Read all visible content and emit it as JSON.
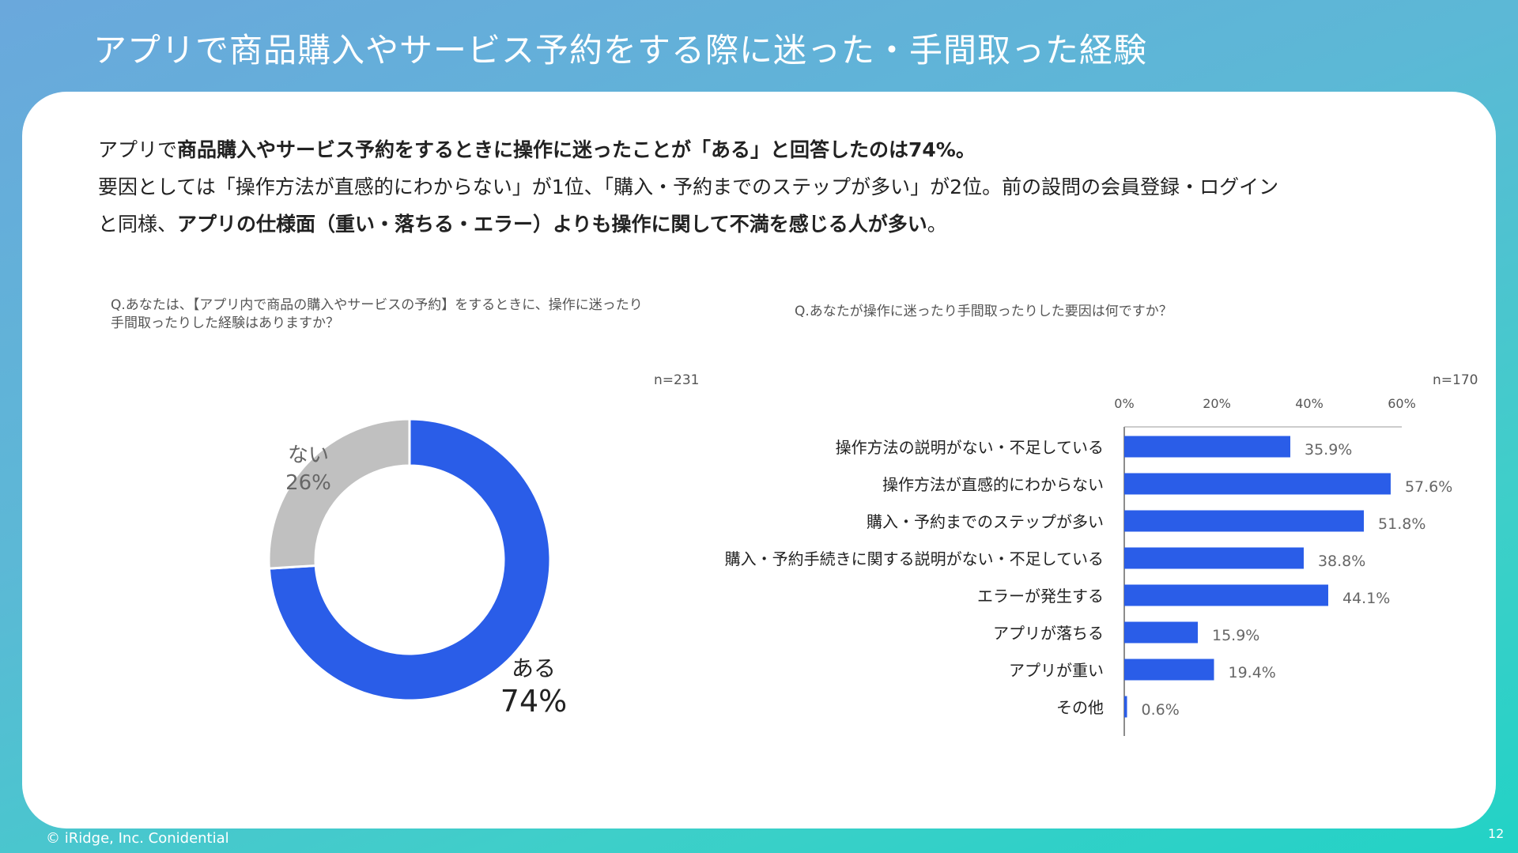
{
  "slide": {
    "title": "アプリで商品購入やサービス予約をする際に迷った・手間取った経験",
    "summary_line1_a": "アプリで",
    "summary_line1_b": "商品購入やサービス予約をするときに操作に迷ったことが「ある」と回答したのは74%。",
    "summary_line2": "要因としては「操作方法が直感的にわからない」が1位、「購入・予約までのステップが多い」が2位。前の設問の会員登録・ログイン",
    "summary_line3_a": "と同様、",
    "summary_line3_b": "アプリの仕様面（重い・落ちる・エラー）よりも操作に関して不満を感じる人が多い",
    "summary_line3_c": "。",
    "footer": "© iRidge, Inc. Conidential",
    "page_number": "12"
  },
  "chart_data": [
    {
      "type": "pie",
      "question_line1": "Q.あなたは、【アプリ内で商品の購入やサービスの予約】をするときに、操作に迷ったり",
      "question_line2": "手間取ったりした経験はありますか？",
      "n": "n=231",
      "slices": [
        {
          "label": "ある",
          "value": 74,
          "value_label": "74%",
          "color": "#2a5de8"
        },
        {
          "label": "ない",
          "value": 26,
          "value_label": "26%",
          "color": "#c0c0c0"
        }
      ]
    },
    {
      "type": "bar",
      "orientation": "horizontal",
      "question": "Q.あなたが操作に迷ったり手間取ったりした要因は何ですか？",
      "n": "n=170",
      "xlim": [
        0,
        60
      ],
      "ticks": [
        0,
        20,
        40,
        60
      ],
      "tick_labels": [
        "0%",
        "20%",
        "40%",
        "60%"
      ],
      "bar_color": "#2a5de8",
      "categories": [
        "操作方法の説明がない・不足している",
        "操作方法が直感的にわからない",
        "購入・予約までのステップが多い",
        "購入・予約手続きに関する説明がない・不足している",
        "エラーが発生する",
        "アプリが落ちる",
        "アプリが重い",
        "その他"
      ],
      "values": [
        35.9,
        57.6,
        51.8,
        38.8,
        44.1,
        15.9,
        19.4,
        0.6
      ],
      "value_labels": [
        "35.9%",
        "57.6%",
        "51.8%",
        "38.8%",
        "44.1%",
        "15.9%",
        "19.4%",
        "0.6%"
      ]
    }
  ]
}
